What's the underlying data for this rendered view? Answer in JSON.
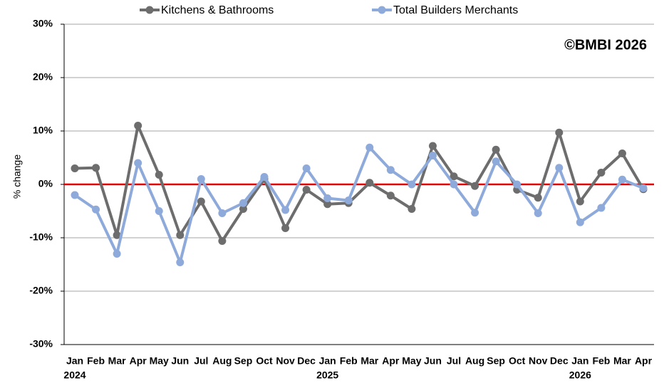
{
  "chart_data": {
    "type": "line",
    "y_label": "% change",
    "annotation": "©BMBI 2026",
    "legend": "top",
    "grid": true,
    "zero_line_color": "#e00000",
    "categories": [
      "Jan",
      "Feb",
      "Mar",
      "Apr",
      "May",
      "Jun",
      "Jul",
      "Aug",
      "Sep",
      "Oct",
      "Nov",
      "Dec",
      "Jan",
      "Feb",
      "Mar",
      "Apr",
      "May",
      "Jun",
      "Jul",
      "Aug",
      "Sep",
      "Oct",
      "Nov",
      "Dec",
      "Jan",
      "Feb",
      "Mar",
      "Apr"
    ],
    "year_labels": [
      "2024",
      null,
      null,
      null,
      null,
      null,
      null,
      null,
      null,
      null,
      null,
      null,
      "2025",
      null,
      null,
      null,
      null,
      null,
      null,
      null,
      null,
      null,
      null,
      null,
      "2026",
      null,
      null,
      null
    ],
    "ylim": [
      -30,
      30
    ],
    "yticks": [
      {
        "value": -30,
        "label": "-30%"
      },
      {
        "value": -20,
        "label": "-20%"
      },
      {
        "value": -10,
        "label": "-10%"
      },
      {
        "value": 0,
        "label": "0%"
      },
      {
        "value": 10,
        "label": "10%"
      },
      {
        "value": 20,
        "label": "20%"
      },
      {
        "value": 30,
        "label": "30%"
      }
    ],
    "series": [
      {
        "name": "Kitchens & Bathrooms",
        "color": "#6d6d6d",
        "values": [
          3,
          3.1,
          -9.5,
          11,
          1.8,
          -9.5,
          -3.2,
          -10.6,
          -4.6,
          1,
          -8.2,
          -1,
          -3.7,
          -3.5,
          0.3,
          -2.1,
          -4.6,
          7.2,
          1.5,
          -0.3,
          6.5,
          -1,
          -2.5,
          9.7,
          -3.2,
          2.2,
          5.8,
          -0.9
        ]
      },
      {
        "name": "Total Builders Merchants",
        "color": "#8eaadb",
        "values": [
          -2,
          -4.7,
          -13,
          4,
          -5,
          -14.6,
          1,
          -5.4,
          -3.5,
          1.4,
          -4.8,
          3,
          -2.6,
          -3,
          6.9,
          2.7,
          0,
          5.4,
          0,
          -5.3,
          4.3,
          0,
          -5.4,
          3.1,
          -7.1,
          -4.4,
          0.9,
          -0.7
        ]
      }
    ]
  }
}
